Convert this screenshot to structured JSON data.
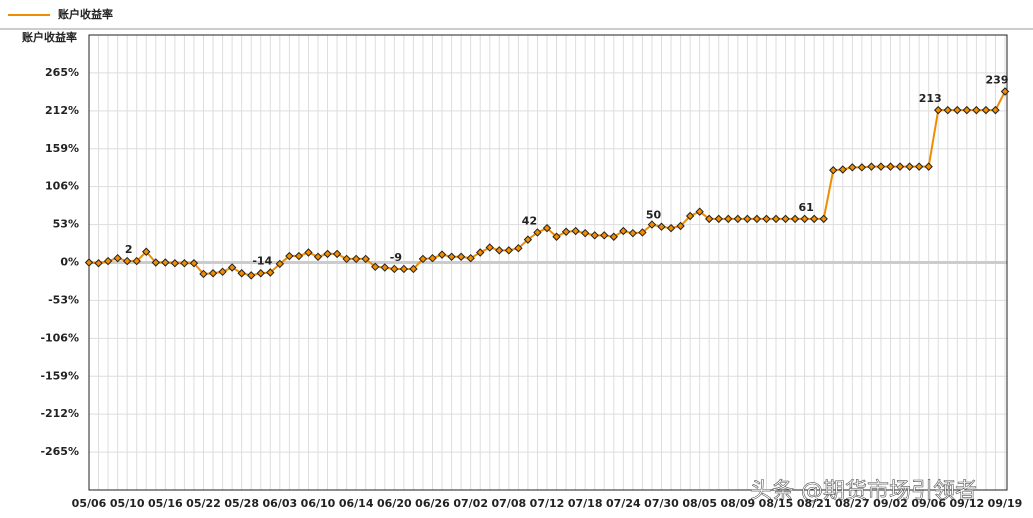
{
  "chart_data": {
    "type": "line",
    "legend_title": "账户收益率",
    "y_label": "账户收益率",
    "watermark": "头条 @期货市场引领者",
    "categories": [
      "05/06",
      null,
      null,
      null,
      "05/10",
      null,
      null,
      null,
      "05/16",
      null,
      null,
      null,
      "05/22",
      null,
      null,
      null,
      "05/28",
      null,
      null,
      null,
      "06/03",
      null,
      null,
      null,
      "06/10",
      null,
      null,
      null,
      "06/14",
      null,
      null,
      null,
      "06/20",
      null,
      null,
      null,
      "06/26",
      null,
      null,
      null,
      "07/02",
      null,
      null,
      null,
      "07/08",
      null,
      null,
      null,
      "07/12",
      null,
      null,
      null,
      "07/18",
      null,
      null,
      null,
      "07/24",
      null,
      null,
      null,
      "07/30",
      null,
      null,
      null,
      "08/05",
      null,
      null,
      null,
      "08/09",
      null,
      null,
      null,
      "08/15",
      null,
      null,
      null,
      "08/21",
      null,
      null,
      null,
      "08/27",
      null,
      null,
      null,
      "09/02",
      null,
      null,
      null,
      "09/06",
      null,
      null,
      null,
      "09/12",
      null,
      null,
      null,
      "09/19"
    ],
    "series": [
      {
        "name": "账户收益率",
        "color": "#f08c00",
        "values": [
          0,
          -1,
          2,
          6,
          2,
          2,
          15,
          0,
          0,
          -1,
          -1,
          -1,
          -16,
          -15,
          -13,
          -7,
          -15,
          -18,
          -15,
          -14,
          -2,
          9,
          9,
          14,
          8,
          12,
          12,
          5,
          5,
          5,
          -6,
          -7,
          -9,
          -9,
          -9,
          5,
          6,
          11,
          8,
          8,
          6,
          14,
          21,
          17,
          17,
          20,
          32,
          42,
          48,
          36,
          43,
          44,
          41,
          38,
          38,
          36,
          44,
          41,
          42,
          53,
          50,
          48,
          51,
          65,
          71,
          61,
          61,
          61,
          61,
          61,
          61,
          61,
          61,
          61,
          61,
          61,
          61,
          61,
          129,
          130,
          133,
          133,
          134,
          134,
          134,
          134,
          134,
          134,
          134,
          213,
          213,
          213,
          213,
          213,
          213,
          213,
          239
        ],
        "value_labels": [
          null,
          null,
          null,
          null,
          null,
          "2",
          null,
          null,
          null,
          null,
          null,
          null,
          null,
          null,
          null,
          null,
          null,
          null,
          null,
          "-14",
          null,
          null,
          null,
          null,
          null,
          null,
          null,
          null,
          null,
          null,
          null,
          null,
          null,
          "-9",
          null,
          null,
          null,
          null,
          null,
          null,
          null,
          null,
          null,
          null,
          null,
          null,
          null,
          "42",
          null,
          null,
          null,
          null,
          null,
          null,
          null,
          null,
          null,
          null,
          null,
          null,
          "50",
          null,
          null,
          null,
          null,
          null,
          null,
          null,
          null,
          null,
          null,
          null,
          null,
          null,
          null,
          null,
          "61",
          null,
          null,
          null,
          null,
          null,
          null,
          null,
          null,
          null,
          null,
          null,
          null,
          "213",
          null,
          null,
          null,
          null,
          null,
          null,
          "239"
        ]
      }
    ],
    "ylim": [
      -318,
      318
    ],
    "yticks": [
      {
        "value": 265,
        "label": "265%"
      },
      {
        "value": 212,
        "label": "212%"
      },
      {
        "value": 159,
        "label": "159%"
      },
      {
        "value": 106,
        "label": "106%"
      },
      {
        "value": 53,
        "label": "53%"
      },
      {
        "value": 0,
        "label": "0%"
      },
      {
        "value": -53,
        "label": "-53%"
      },
      {
        "value": -106,
        "label": "-106%"
      },
      {
        "value": -159,
        "label": "-159%"
      },
      {
        "value": -212,
        "label": "-212%"
      },
      {
        "value": -265,
        "label": "-265%"
      }
    ],
    "grid": true
  }
}
